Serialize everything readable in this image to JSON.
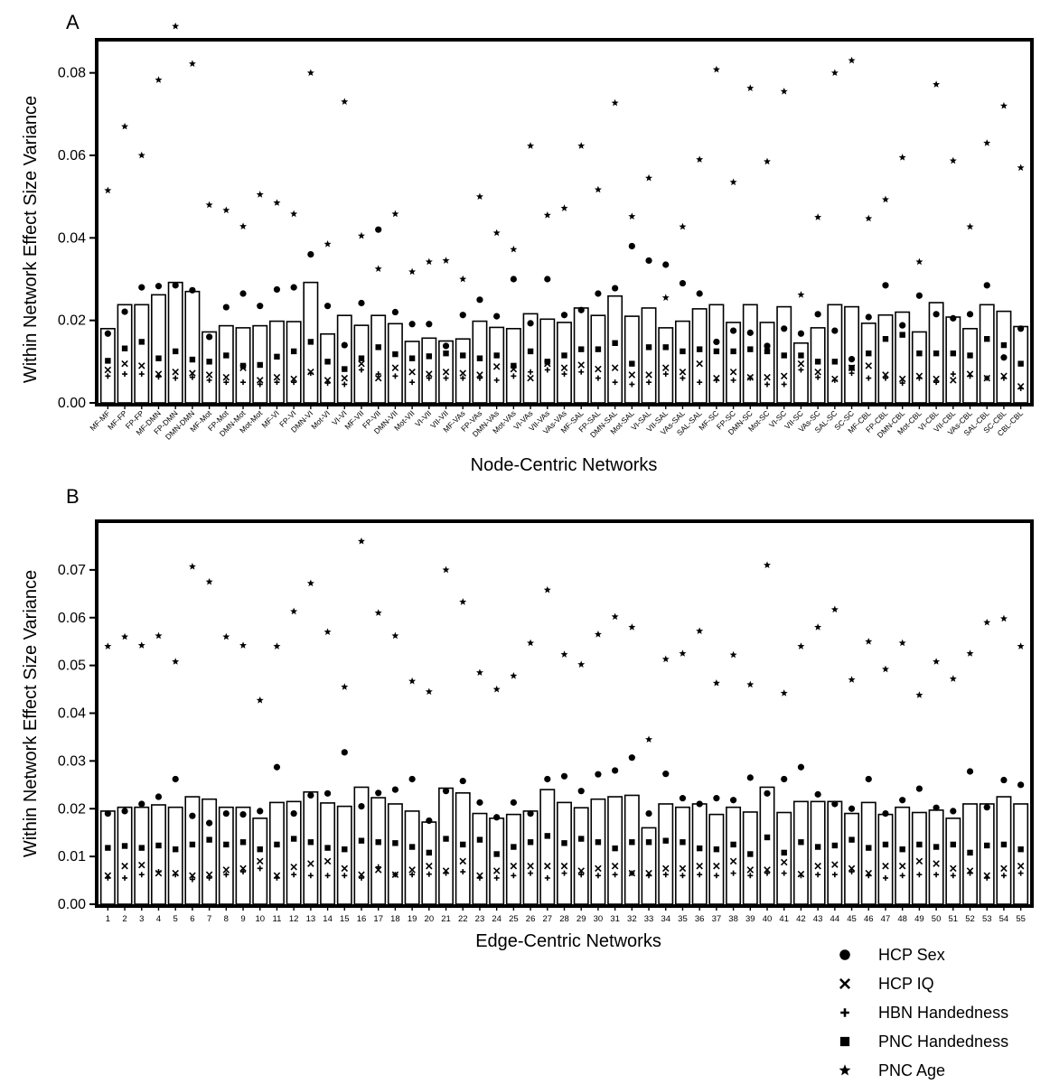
{
  "legend": [
    {
      "name": "HCP Sex",
      "marker": "circle"
    },
    {
      "name": "HCP IQ",
      "marker": "x"
    },
    {
      "name": "HBN Handedness",
      "marker": "plus"
    },
    {
      "name": "PNC Handedness",
      "marker": "square"
    },
    {
      "name": "PNC Age",
      "marker": "star"
    }
  ],
  "chart_data": [
    {
      "panel": "A",
      "type": "bar",
      "title": "",
      "xlabel": "Node-Centric Networks",
      "ylabel": "Within Network Effect Size Variance",
      "ylim": [
        0,
        0.09
      ],
      "yticks": [
        "0.00",
        "0.02",
        "0.04",
        "0.06",
        "0.08"
      ],
      "categories": [
        "MF-MF",
        "MF-FP",
        "FP-FP",
        "MF-DMN",
        "FP-DMN",
        "DMN-DMN",
        "MF-Mot",
        "FP-Mot",
        "DMN-Mot",
        "Mot-Mot",
        "MF-VI",
        "FP-VI",
        "DMN-VI",
        "Mot-VI",
        "VI-VI",
        "MF-VII",
        "FP-VII",
        "DMN-VII",
        "Mot-VII",
        "VI-VII",
        "VII-VII",
        "MF-VAs",
        "FP-VAs",
        "DMN-VAs",
        "Mot-VAs",
        "VI-VAs",
        "VII-VAs",
        "VAs-VAs",
        "MF-SAL",
        "FP-SAL",
        "DMN-SAL",
        "Mot-SAL",
        "VI-SAL",
        "VII-SAL",
        "VAs-SAL",
        "SAL-SAL",
        "MF-SC",
        "FP-SC",
        "DMN-SC",
        "Mot-SC",
        "VI-SC",
        "VII-SC",
        "VAs-SC",
        "SAL-SC",
        "SC-SC",
        "MF-CBL",
        "FP-CBL",
        "DMN-CBL",
        "Mot-CBL",
        "VI-CBL",
        "VII-CBL",
        "VAs-CBL",
        "SAL-CBL",
        "SC-CBL",
        "CBL-CBL"
      ],
      "bar_values": [
        0.018,
        0.0238,
        0.0238,
        0.0262,
        0.0292,
        0.027,
        0.0172,
        0.0187,
        0.0182,
        0.0187,
        0.0198,
        0.0197,
        0.0292,
        0.0167,
        0.0212,
        0.0188,
        0.0212,
        0.0192,
        0.0149,
        0.0157,
        0.015,
        0.0155,
        0.0198,
        0.0183,
        0.018,
        0.0216,
        0.0203,
        0.0195,
        0.023,
        0.0212,
        0.0259,
        0.021,
        0.023,
        0.0182,
        0.0198,
        0.0228,
        0.0238,
        0.0195,
        0.0238,
        0.0195,
        0.0233,
        0.0145,
        0.0182,
        0.0238,
        0.0233,
        0.0193,
        0.0213,
        0.022,
        0.0172,
        0.0243,
        0.0208,
        0.018,
        0.0238,
        0.0222,
        0.0185
      ],
      "series": [
        {
          "name": "HCP Sex",
          "values": [
            0.0168,
            0.0221,
            0.028,
            0.0283,
            0.0285,
            0.0273,
            0.016,
            0.0232,
            0.0265,
            0.0235,
            0.0275,
            0.028,
            0.036,
            0.0235,
            0.014,
            0.0242,
            0.042,
            0.022,
            0.0191,
            0.0191,
            0.0138,
            0.0213,
            0.025,
            0.021,
            0.03,
            0.0193,
            0.03,
            0.0213,
            0.0225,
            0.0265,
            0.0278,
            0.038,
            0.0345,
            0.0335,
            0.029,
            0.0265,
            0.0148,
            0.0175,
            0.017,
            0.0138,
            0.018,
            0.0168,
            0.0215,
            0.0175,
            0.0106,
            0.0208,
            0.0285,
            0.0188,
            0.026,
            0.0215,
            0.0205,
            0.0215,
            0.0285,
            0.011,
            0.018
          ]
        },
        {
          "name": "HCP IQ",
          "values": [
            0.008,
            0.0095,
            0.009,
            0.007,
            0.0075,
            0.0072,
            0.0068,
            0.0062,
            0.0085,
            0.0055,
            0.0062,
            0.0058,
            0.0075,
            0.0055,
            0.006,
            0.0095,
            0.006,
            0.0085,
            0.0075,
            0.007,
            0.0075,
            0.0072,
            0.0068,
            0.0088,
            0.0082,
            0.006,
            0.0095,
            0.0085,
            0.0092,
            0.0082,
            0.0085,
            0.0068,
            0.0068,
            0.0085,
            0.0075,
            0.0095,
            0.006,
            0.0075,
            0.0062,
            0.0062,
            0.0065,
            0.0095,
            0.0075,
            0.0058,
            0.0085,
            0.009,
            0.0068,
            0.0058,
            0.0065,
            0.0058,
            0.0055,
            0.007,
            0.006,
            0.0065,
            0.004
          ]
        },
        {
          "name": "HBN Handedness",
          "values": [
            0.0065,
            0.007,
            0.007,
            0.0063,
            0.006,
            0.0062,
            0.0055,
            0.005,
            0.005,
            0.0045,
            0.005,
            0.005,
            0.0072,
            0.0048,
            0.0045,
            0.008,
            0.007,
            0.0065,
            0.005,
            0.006,
            0.006,
            0.006,
            0.006,
            0.0055,
            0.0065,
            0.0075,
            0.008,
            0.007,
            0.0075,
            0.006,
            0.005,
            0.0045,
            0.005,
            0.007,
            0.006,
            0.005,
            0.0055,
            0.0055,
            0.006,
            0.0045,
            0.0045,
            0.008,
            0.0062,
            0.0055,
            0.0072,
            0.006,
            0.006,
            0.0048,
            0.006,
            0.005,
            0.007,
            0.0065,
            0.006,
            0.006,
            0.0035
          ]
        },
        {
          "name": "PNC Handedness",
          "values": [
            0.0102,
            0.0132,
            0.0148,
            0.0108,
            0.0125,
            0.0105,
            0.01,
            0.0115,
            0.009,
            0.0092,
            0.0112,
            0.0125,
            0.0148,
            0.01,
            0.0082,
            0.0108,
            0.0135,
            0.0118,
            0.0108,
            0.0113,
            0.012,
            0.0115,
            0.0108,
            0.0115,
            0.009,
            0.0125,
            0.01,
            0.0115,
            0.013,
            0.013,
            0.0145,
            0.0095,
            0.0135,
            0.0135,
            0.0125,
            0.013,
            0.0125,
            0.0125,
            0.013,
            0.0125,
            0.0115,
            0.0115,
            0.01,
            0.01,
            0.0085,
            0.012,
            0.0155,
            0.0165,
            0.012,
            0.012,
            0.012,
            0.0115,
            0.0155,
            0.014,
            0.0095
          ]
        },
        {
          "name": "PNC Age",
          "values": [
            0.0515,
            0.067,
            0.06,
            0.0783,
            0.0913,
            0.0822,
            0.048,
            0.0467,
            0.0428,
            0.0505,
            0.0485,
            0.0458,
            0.08,
            0.0385,
            0.073,
            0.0405,
            0.0325,
            0.0458,
            0.0318,
            0.0342,
            0.0345,
            0.03,
            0.05,
            0.0412,
            0.0372,
            0.0623,
            0.0455,
            0.0472,
            0.0623,
            0.0517,
            0.0727,
            0.0452,
            0.0545,
            0.0255,
            0.0427,
            0.059,
            0.0808,
            0.0535,
            0.0763,
            0.0585,
            0.0755,
            0.0262,
            0.045,
            0.08,
            0.083,
            0.0447,
            0.0493,
            0.0595,
            0.0342,
            0.0772,
            0.0587,
            0.0427,
            0.063,
            0.072,
            0.057
          ]
        }
      ]
    },
    {
      "panel": "B",
      "type": "bar",
      "title": "",
      "xlabel": "Edge-Centric Networks",
      "ylabel": "Within Network Effect Size Variance",
      "ylim": [
        0,
        0.08
      ],
      "yticks": [
        "0.00",
        "0.01",
        "0.02",
        "0.03",
        "0.04",
        "0.05",
        "0.06",
        "0.07"
      ],
      "categories": [
        "1",
        "2",
        "3",
        "4",
        "5",
        "6",
        "7",
        "8",
        "9",
        "10",
        "11",
        "12",
        "13",
        "14",
        "15",
        "16",
        "17",
        "18",
        "19",
        "20",
        "21",
        "22",
        "23",
        "24",
        "25",
        "26",
        "27",
        "28",
        "29",
        "30",
        "31",
        "32",
        "33",
        "34",
        "35",
        "36",
        "37",
        "38",
        "39",
        "40",
        "41",
        "42",
        "43",
        "44",
        "45",
        "46",
        "47",
        "48",
        "49",
        "50",
        "51",
        "52",
        "53",
        "54",
        "55"
      ],
      "bar_values": [
        0.0195,
        0.0203,
        0.0203,
        0.0208,
        0.0203,
        0.0225,
        0.022,
        0.0203,
        0.0203,
        0.018,
        0.0213,
        0.0215,
        0.0235,
        0.0212,
        0.0205,
        0.0245,
        0.0223,
        0.021,
        0.0195,
        0.0172,
        0.0243,
        0.0233,
        0.019,
        0.018,
        0.0188,
        0.0195,
        0.024,
        0.0213,
        0.0202,
        0.022,
        0.0225,
        0.0228,
        0.016,
        0.021,
        0.0203,
        0.021,
        0.0188,
        0.0203,
        0.0193,
        0.0245,
        0.0192,
        0.0215,
        0.0215,
        0.0215,
        0.019,
        0.0213,
        0.0188,
        0.0203,
        0.0192,
        0.0197,
        0.018,
        0.021,
        0.021,
        0.0225,
        0.021
      ],
      "series": [
        {
          "name": "HCP Sex",
          "values": [
            0.019,
            0.0195,
            0.021,
            0.0225,
            0.0262,
            0.0185,
            0.017,
            0.019,
            0.0188,
            0.0195,
            0.0287,
            0.019,
            0.0228,
            0.0232,
            0.0318,
            0.0205,
            0.0233,
            0.024,
            0.0262,
            0.0175,
            0.0237,
            0.0258,
            0.0213,
            0.0182,
            0.0213,
            0.019,
            0.0262,
            0.0268,
            0.0237,
            0.0272,
            0.028,
            0.0307,
            0.019,
            0.0273,
            0.0222,
            0.021,
            0.0222,
            0.0218,
            0.0265,
            0.0232,
            0.0262,
            0.0287,
            0.023,
            0.021,
            0.02,
            0.0262,
            0.019,
            0.0218,
            0.0242,
            0.0202,
            0.0195,
            0.0278,
            0.0203,
            0.026,
            0.025
          ]
        },
        {
          "name": "HCP IQ",
          "values": [
            0.006,
            0.008,
            0.0082,
            0.0065,
            0.0065,
            0.006,
            0.0062,
            0.0072,
            0.0075,
            0.009,
            0.006,
            0.0078,
            0.0085,
            0.009,
            0.0075,
            0.0062,
            0.0072,
            0.0062,
            0.0072,
            0.008,
            0.007,
            0.009,
            0.006,
            0.007,
            0.008,
            0.008,
            0.008,
            0.008,
            0.007,
            0.0075,
            0.008,
            0.0065,
            0.0065,
            0.0075,
            0.0075,
            0.008,
            0.008,
            0.009,
            0.0072,
            0.0072,
            0.0088,
            0.0063,
            0.008,
            0.0083,
            0.0075,
            0.0065,
            0.008,
            0.008,
            0.009,
            0.0085,
            0.0075,
            0.007,
            0.006,
            0.0075,
            0.008
          ]
        },
        {
          "name": "HBN Handedness",
          "values": [
            0.0055,
            0.0055,
            0.0062,
            0.0068,
            0.0062,
            0.0052,
            0.0055,
            0.0062,
            0.0068,
            0.0075,
            0.0055,
            0.0062,
            0.006,
            0.006,
            0.006,
            0.0055,
            0.0078,
            0.0062,
            0.0062,
            0.0063,
            0.0065,
            0.0068,
            0.0055,
            0.0055,
            0.006,
            0.0065,
            0.0055,
            0.0065,
            0.0062,
            0.006,
            0.0062,
            0.0065,
            0.006,
            0.0062,
            0.006,
            0.0062,
            0.006,
            0.0065,
            0.006,
            0.0065,
            0.0065,
            0.006,
            0.0062,
            0.0062,
            0.0068,
            0.006,
            0.0055,
            0.006,
            0.0062,
            0.0062,
            0.006,
            0.0065,
            0.0055,
            0.006,
            0.0065
          ]
        },
        {
          "name": "PNC Handedness",
          "values": [
            0.0118,
            0.0122,
            0.0118,
            0.0123,
            0.0115,
            0.0125,
            0.0135,
            0.0125,
            0.013,
            0.0115,
            0.0125,
            0.0137,
            0.013,
            0.0118,
            0.0115,
            0.0133,
            0.013,
            0.0128,
            0.012,
            0.0108,
            0.0137,
            0.0125,
            0.0135,
            0.0105,
            0.012,
            0.013,
            0.0143,
            0.0128,
            0.0137,
            0.013,
            0.0117,
            0.013,
            0.013,
            0.0133,
            0.013,
            0.0117,
            0.0115,
            0.0125,
            0.0105,
            0.014,
            0.0108,
            0.013,
            0.012,
            0.0123,
            0.0135,
            0.0118,
            0.0125,
            0.0115,
            0.0125,
            0.012,
            0.0125,
            0.0108,
            0.0123,
            0.0125,
            0.0115
          ]
        },
        {
          "name": "PNC Age",
          "values": [
            0.054,
            0.056,
            0.0542,
            0.0562,
            0.0508,
            0.0707,
            0.0675,
            0.056,
            0.0542,
            0.0427,
            0.054,
            0.0613,
            0.0672,
            0.057,
            0.0455,
            0.076,
            0.061,
            0.0562,
            0.0467,
            0.0445,
            0.07,
            0.0633,
            0.0485,
            0.045,
            0.0478,
            0.0547,
            0.0658,
            0.0523,
            0.0502,
            0.0565,
            0.0602,
            0.058,
            0.0345,
            0.0513,
            0.0525,
            0.0572,
            0.0463,
            0.0522,
            0.046,
            0.071,
            0.0442,
            0.054,
            0.058,
            0.0617,
            0.047,
            0.055,
            0.0492,
            0.0547,
            0.0438,
            0.0508,
            0.0472,
            0.0525,
            0.059,
            0.0598,
            0.054
          ]
        }
      ]
    }
  ]
}
